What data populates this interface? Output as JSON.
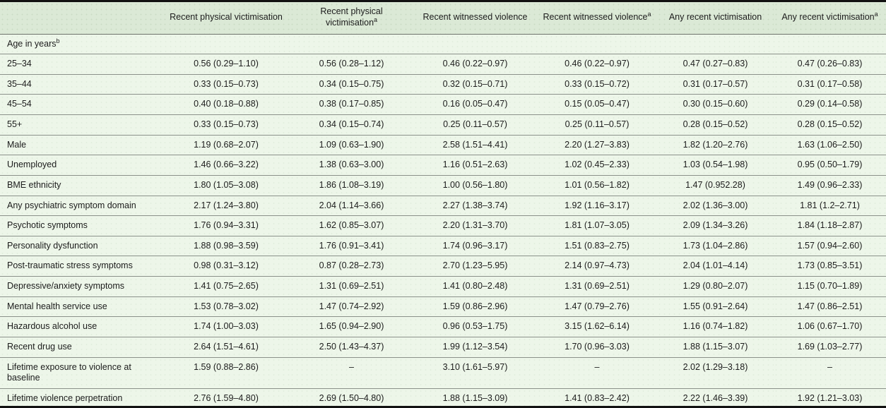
{
  "colors": {
    "header_bg": "#dbe9d6",
    "body_bg": "#edf6e9",
    "outer_border": "#111111",
    "row_line": "#8b918a",
    "text": "#1c1c1c"
  },
  "table": {
    "columns": [
      {
        "label": "",
        "sup": ""
      },
      {
        "label": "Recent physical victimisation",
        "sup": ""
      },
      {
        "label": "Recent physical victimisation",
        "sup": "a"
      },
      {
        "label": "Recent witnessed violence",
        "sup": ""
      },
      {
        "label": "Recent witnessed violence",
        "sup": "a"
      },
      {
        "label": "Any recent victimisation",
        "sup": ""
      },
      {
        "label": "Any recent victimisation",
        "sup": "a"
      }
    ],
    "rows": [
      {
        "label": "Age in years",
        "sup": "b",
        "section": true,
        "values": []
      },
      {
        "label": "25–34",
        "sup": "",
        "section": false,
        "values": [
          "0.56 (0.29–1.10)",
          "0.56 (0.28–1.12)",
          "0.46 (0.22–0.97)",
          "0.46 (0.22–0.97)",
          "0.47 (0.27–0.83)",
          "0.47 (0.26–0.83)"
        ]
      },
      {
        "label": "35–44",
        "sup": "",
        "section": false,
        "values": [
          "0.33 (0.15–0.73)",
          "0.34 (0.15–0.75)",
          "0.32 (0.15–0.71)",
          "0.33 (0.15–0.72)",
          "0.31 (0.17–0.57)",
          "0.31 (0.17–0.58)"
        ]
      },
      {
        "label": "45–54",
        "sup": "",
        "section": false,
        "values": [
          "0.40 (0.18–0.88)",
          "0.38 (0.17–0.85)",
          "0.16 (0.05–0.47)",
          "0.15 (0.05–0.47)",
          "0.30 (0.15–0.60)",
          "0.29 (0.14–0.58)"
        ]
      },
      {
        "label": "55+",
        "sup": "",
        "section": false,
        "values": [
          "0.33 (0.15–0.73)",
          "0.34 (0.15–0.74)",
          "0.25 (0.11–0.57)",
          "0.25 (0.11–0.57)",
          "0.28 (0.15–0.52)",
          "0.28 (0.15–0.52)"
        ]
      },
      {
        "label": "Male",
        "sup": "",
        "section": false,
        "values": [
          "1.19 (0.68–2.07)",
          "1.09 (0.63–1.90)",
          "2.58 (1.51–4.41)",
          "2.20 (1.27–3.83)",
          "1.82 (1.20–2.76)",
          "1.63 (1.06–2.50)"
        ]
      },
      {
        "label": "Unemployed",
        "sup": "",
        "section": false,
        "values": [
          "1.46 (0.66–3.22)",
          "1.38 (0.63–3.00)",
          "1.16 (0.51–2.63)",
          "1.02 (0.45–2.33)",
          "1.03 (0.54–1.98)",
          "0.95 (0.50–1.79)"
        ]
      },
      {
        "label": "BME ethnicity",
        "sup": "",
        "section": false,
        "values": [
          "1.80 (1.05–3.08)",
          "1.86 (1.08–3.19)",
          "1.00 (0.56–1.80)",
          "1.01 (0.56–1.82)",
          "1.47 (0.952.28)",
          "1.49 (0.96–2.33)"
        ]
      },
      {
        "label": "Any psychiatric symptom domain",
        "sup": "",
        "section": false,
        "values": [
          "2.17 (1.24–3.80)",
          "2.04 (1.14–3.66)",
          "2.27 (1.38–3.74)",
          "1.92 (1.16–3.17)",
          "2.02 (1.36–3.00)",
          "1.81 (1.2–2.71)"
        ]
      },
      {
        "label": "Psychotic symptoms",
        "sup": "",
        "section": false,
        "values": [
          "1.76 (0.94–3.31)",
          "1.62 (0.85–3.07)",
          "2.20 (1.31–3.70)",
          "1.81 (1.07–3.05)",
          "2.09 (1.34–3.26)",
          "1.84 (1.18–2.87)"
        ]
      },
      {
        "label": "Personality dysfunction",
        "sup": "",
        "section": false,
        "values": [
          "1.88 (0.98–3.59)",
          "1.76 (0.91–3.41)",
          "1.74 (0.96–3.17)",
          "1.51 (0.83–2.75)",
          "1.73 (1.04–2.86)",
          "1.57 (0.94–2.60)"
        ]
      },
      {
        "label": "Post-traumatic stress symptoms",
        "sup": "",
        "section": false,
        "values": [
          "0.98 (0.31–3.12)",
          "0.87 (0.28–2.73)",
          "2.70 (1.23–5.95)",
          "2.14 (0.97–4.73)",
          "2.04 (1.01–4.14)",
          "1.73 (0.85–3.51)"
        ]
      },
      {
        "label": "Depressive/anxiety symptoms",
        "sup": "",
        "section": false,
        "values": [
          "1.41 (0.75–2.65)",
          "1.31 (0.69–2.51)",
          "1.41 (0.80–2.48)",
          "1.31 (0.69–2.51)",
          "1.29 (0.80–2.07)",
          "1.15 (0.70–1.89)"
        ]
      },
      {
        "label": "Mental health service use",
        "sup": "",
        "section": false,
        "values": [
          "1.53 (0.78–3.02)",
          "1.47 (0.74–2.92)",
          "1.59 (0.86–2.96)",
          "1.47 (0.79–2.76)",
          "1.55 (0.91–2.64)",
          "1.47 (0.86–2.51)"
        ]
      },
      {
        "label": "Hazardous alcohol use",
        "sup": "",
        "section": false,
        "values": [
          "1.74 (1.00–3.03)",
          "1.65 (0.94–2.90)",
          "0.96 (0.53–1.75)",
          "3.15 (1.62–6.14)",
          "1.16 (0.74–1.82)",
          "1.06 (0.67–1.70)"
        ]
      },
      {
        "label": "Recent drug use",
        "sup": "",
        "section": false,
        "values": [
          "2.64 (1.51–4.61)",
          "2.50 (1.43–4.37)",
          "1.99 (1.12–3.54)",
          "1.70 (0.96–3.03)",
          "1.88 (1.15–3.07)",
          "1.69 (1.03–2.77)"
        ]
      },
      {
        "label": "Lifetime exposure to violence at baseline",
        "sup": "",
        "section": false,
        "values": [
          "1.59 (0.88–2.86)",
          "–",
          "3.10 (1.61–5.97)",
          "–",
          "2.02 (1.29–3.18)",
          "–"
        ]
      },
      {
        "label": "Lifetime violence perpetration",
        "sup": "",
        "section": false,
        "values": [
          "2.76 (1.59–4.80)",
          "2.69 (1.50–4.80)",
          "1.88 (1.15–3.09)",
          "1.41 (0.83–2.42)",
          "2.22 (1.46–3.39)",
          "1.92 (1.21–3.03)"
        ]
      }
    ]
  }
}
